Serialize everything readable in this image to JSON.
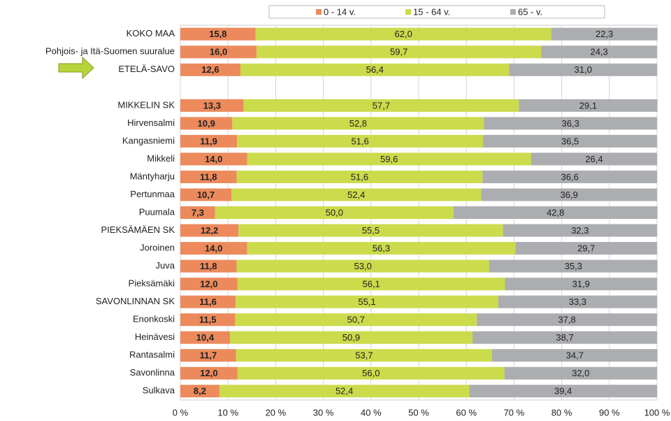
{
  "chart_data": {
    "type": "stacked_barh",
    "categories": [
      "KOKO MAA",
      "Pohjois- ja Itä-Suomen suuralue",
      "ETELÄ-SAVO",
      null,
      "MIKKELIN SK",
      "Hirvensalmi",
      "Kangasniemi",
      "Mikkeli",
      "Mäntyharju",
      "Pertunmaa",
      "Puumala",
      "PIEKSÄMÄEN SK",
      "Joroinen",
      "Juva",
      "Pieksämäki",
      "SAVONLINNAN SK",
      "Enonkoski",
      "Heinävesi",
      "Rantasalmi",
      "Savonlinna",
      "Sulkava"
    ],
    "series": [
      {
        "name": "0 - 14 v.",
        "color": "#ec8a5c",
        "values": [
          15.8,
          16.0,
          12.6,
          null,
          13.3,
          10.9,
          11.9,
          14.0,
          11.8,
          10.7,
          7.3,
          12.2,
          14.0,
          11.8,
          12.0,
          11.6,
          11.5,
          10.4,
          11.7,
          12.0,
          8.2
        ],
        "value_labels": [
          "15,8",
          "16,0",
          "12,6",
          null,
          "13,3",
          "10,9",
          "11,9",
          "14,0",
          "11,8",
          "10,7",
          "7,3",
          "12,2",
          "14,0",
          "11,8",
          "12,0",
          "11,6",
          "11,5",
          "10,4",
          "11,7",
          "12,0",
          "8,2"
        ]
      },
      {
        "name": "15 - 64 v.",
        "color": "#cbdb4c",
        "values": [
          62.0,
          59.7,
          56.4,
          null,
          57.7,
          52.8,
          51.6,
          59.6,
          51.6,
          52.4,
          50.0,
          55.5,
          56.3,
          53.0,
          56.1,
          55.1,
          50.7,
          50.9,
          53.7,
          56.0,
          52.4
        ],
        "value_labels": [
          "62,0",
          "59,7",
          "56,4",
          null,
          "57,7",
          "52,8",
          "51,6",
          "59,6",
          "51,6",
          "52,4",
          "50,0",
          "55,5",
          "56,3",
          "53,0",
          "56,1",
          "55,1",
          "50,7",
          "50,9",
          "53,7",
          "56,0",
          "52,4"
        ]
      },
      {
        "name": "65 - v.",
        "color": "#abadb0",
        "values": [
          22.3,
          24.3,
          31.0,
          null,
          29.1,
          36.3,
          36.5,
          26.4,
          36.6,
          36.9,
          42.8,
          32.3,
          29.7,
          35.3,
          31.9,
          33.3,
          37.8,
          38.7,
          34.7,
          32.0,
          39.4
        ],
        "value_labels": [
          "22,3",
          "24,3",
          "31,0",
          null,
          "29,1",
          "36,3",
          "36,5",
          "26,4",
          "36,6",
          "36,9",
          "42,8",
          "32,3",
          "29,7",
          "35,3",
          "31,9",
          "33,3",
          "37,8",
          "38,7",
          "34,7",
          "32,0",
          "39,4"
        ]
      }
    ],
    "xlim": [
      0,
      100
    ],
    "xticks": [
      {
        "value": 0,
        "label": "0 %"
      },
      {
        "value": 10,
        "label": "10 %"
      },
      {
        "value": 20,
        "label": "20 %"
      },
      {
        "value": 30,
        "label": "30 %"
      },
      {
        "value": 40,
        "label": "40 %"
      },
      {
        "value": 50,
        "label": "50 %"
      },
      {
        "value": 60,
        "label": "60 %"
      },
      {
        "value": 70,
        "label": "70 %"
      },
      {
        "value": 80,
        "label": "80 %"
      },
      {
        "value": 90,
        "label": "90 %"
      },
      {
        "value": 100,
        "label": "100 %"
      }
    ],
    "grid": true,
    "legend": "top"
  }
}
